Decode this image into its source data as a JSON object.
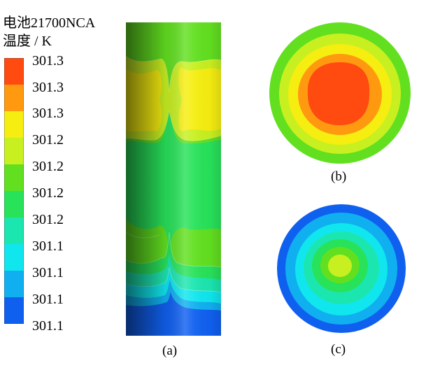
{
  "legend": {
    "title_line1": "电池21700NCA",
    "title_line2": "温度 / K",
    "labels": [
      "301.3",
      "301.3",
      "301.3",
      "301.2",
      "301.2",
      "301.2",
      "301.2",
      "301.1",
      "301.1",
      "301.1",
      "301.1"
    ],
    "colors": [
      "#ff4a10",
      "#ff9a10",
      "#f6ee10",
      "#c8f020",
      "#62e020",
      "#28e25a",
      "#1ce6b0",
      "#10e6ee",
      "#10b0f0",
      "#1060f0"
    ]
  },
  "captions": {
    "a": "(a)",
    "b": "(b)",
    "c": "(c)"
  }
}
